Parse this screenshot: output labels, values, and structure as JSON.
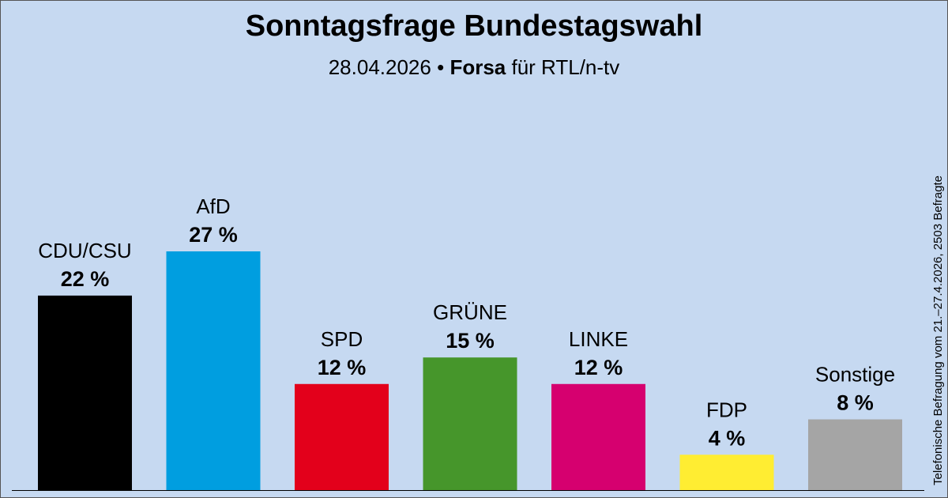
{
  "header": {
    "title": "Sonntagsfrage Bundestagswahl",
    "date": "28.04.2026",
    "bullet": "•",
    "institute": "Forsa",
    "client": "für RTL/n-tv"
  },
  "note": "Telefonische Befragung vom 21.–27.4.2026, 2503 Befragte",
  "chart_data": {
    "type": "bar",
    "title": "Sonntagsfrage Bundestagswahl",
    "categories": [
      "CDU/CSU",
      "AfD",
      "SPD",
      "GRÜNE",
      "LINKE",
      "FDP",
      "Sonstige"
    ],
    "values": [
      22,
      27,
      12,
      15,
      12,
      4,
      8
    ],
    "value_labels": [
      "22 %",
      "27 %",
      "12 %",
      "15 %",
      "12 %",
      "4 %",
      "8 %"
    ],
    "colors": [
      "#000000",
      "#009ee0",
      "#e3001b",
      "#46962b",
      "#d6006f",
      "#ffed32",
      "#a5a5a5"
    ],
    "ylim": [
      0,
      27
    ],
    "xlabel": "",
    "ylabel": "",
    "grid": false
  }
}
